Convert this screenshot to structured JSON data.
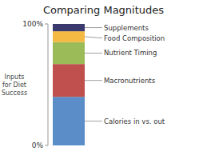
{
  "chart_data": {
    "type": "bar",
    "stacked": true,
    "title": "Comparing Magnitudes",
    "ylabel": "Inputs\nfor Diet\nSuccess",
    "categories": [
      null
    ],
    "series": [
      {
        "name": "Calories in vs. out",
        "color": "#5B8DC9",
        "values": [
          0.4
        ]
      },
      {
        "name": "Macronutrients",
        "color": "#C0504D",
        "values": [
          0.27
        ]
      },
      {
        "name": "Nutrient Timing",
        "color": "#9BBB59",
        "values": [
          0.18
        ]
      },
      {
        "name": "Food Composition",
        "color": "#F4B942",
        "values": [
          0.09
        ]
      },
      {
        "name": "Supplements",
        "color": "#3B3A6E",
        "values": [
          0.06
        ]
      }
    ],
    "ylim": [
      0,
      1.0
    ],
    "yticks": [
      {
        "value": 0,
        "label": "0%"
      },
      {
        "value": 1.0,
        "label": "100%"
      }
    ],
    "tick_labels": "y",
    "grid": false
  }
}
